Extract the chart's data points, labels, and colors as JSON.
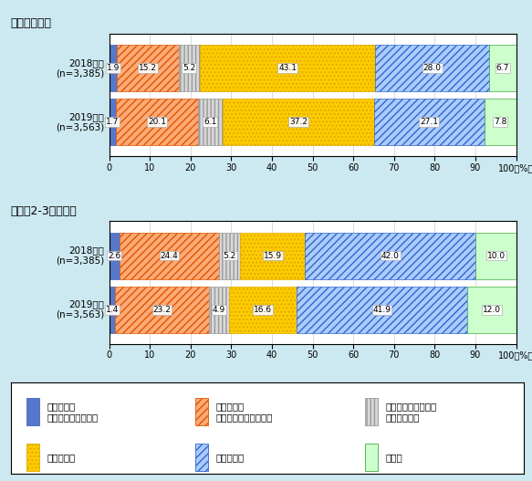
{
  "title1": "＜調査時点＞",
  "title2": "＜今後2-3年程度＞",
  "background_color": "#cce8f0",
  "rows1": [
    {
      "label_line1": "2018年度",
      "label_line2": "(n=3,385)",
      "values": [
        1.9,
        15.2,
        5.2,
        43.1,
        28.0,
        6.7
      ]
    },
    {
      "label_line1": "2019年度",
      "label_line2": "(n=3,563)",
      "values": [
        1.7,
        20.1,
        6.1,
        37.2,
        27.1,
        7.8
      ]
    }
  ],
  "rows2": [
    {
      "label_line1": "2018年度",
      "label_line2": "(n=3,385)",
      "values": [
        2.6,
        24.4,
        5.2,
        15.9,
        42.0,
        10.0
      ]
    },
    {
      "label_line1": "2019年度",
      "label_line2": "(n=3,563)",
      "values": [
        1.4,
        23.2,
        4.9,
        16.6,
        41.9,
        12.0
      ]
    }
  ],
  "seg_facecolors": [
    "#5577cc",
    "#ffaa77",
    "#d8d8d8",
    "#ffcc00",
    "#aaccff",
    "#ccffcc"
  ],
  "seg_edgecolors": [
    "#4466bb",
    "#dd5500",
    "#999999",
    "#ddaa00",
    "#3366cc",
    "#44aa44"
  ],
  "seg_hatches": [
    "",
    "////",
    "||||",
    "....",
    "////",
    "==="
  ],
  "legend_labels": [
    "全体として\nプラスの影響がある",
    "全体として\nマイナスの影響がある",
    "プラスとマイナスの\n影響が同程度",
    "影響はない",
    "わからない",
    "無回答"
  ]
}
